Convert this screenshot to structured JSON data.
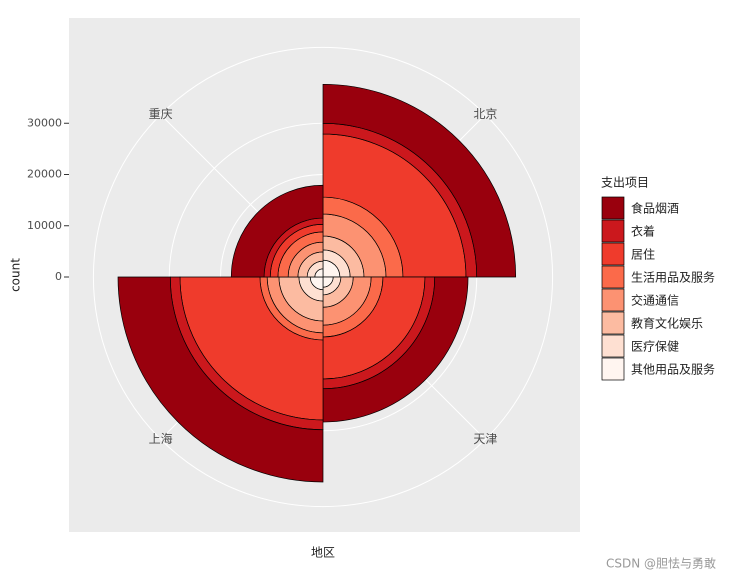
{
  "chart_data": {
    "type": "polar-stacked-bar",
    "x_label": "地区",
    "y_label": "count",
    "legend_title": "支出项目",
    "watermark": "CSDN @胆怯与勇敢",
    "categories": [
      "北京",
      "天津",
      "上海",
      "重庆"
    ],
    "series": [
      {
        "name": "食品烟酒",
        "color": "#99000d",
        "values": [
          7600,
          6500,
          10200,
          6400
        ]
      },
      {
        "name": "衣着",
        "color": "#cb181d",
        "values": [
          2100,
          1900,
          1900,
          1200
        ]
      },
      {
        "name": "居住",
        "color": "#ef3b2c",
        "values": [
          12300,
          8200,
          15600,
          1500
        ]
      },
      {
        "name": "生活用品及服务",
        "color": "#fb6a4a",
        "values": [
          3300,
          2300,
          1400,
          2000
        ]
      },
      {
        "name": "交通通信",
        "color": "#fc9272",
        "values": [
          4300,
          3500,
          2300,
          1900
        ]
      },
      {
        "name": "教育文化娱乐",
        "color": "#fcbba1",
        "values": [
          2700,
          2400,
          3900,
          1800
        ]
      },
      {
        "name": "医疗保健",
        "color": "#fee0d2",
        "values": [
          2000,
          1500,
          2200,
          1500
        ]
      },
      {
        "name": "其他用品及服务",
        "color": "#fff5f0",
        "values": [
          3300,
          2000,
          2500,
          1600
        ]
      }
    ],
    "ylim": [
      0,
      40000
    ],
    "yticks": [
      0,
      10000,
      20000,
      30000
    ],
    "grid": true,
    "legend": "right"
  }
}
